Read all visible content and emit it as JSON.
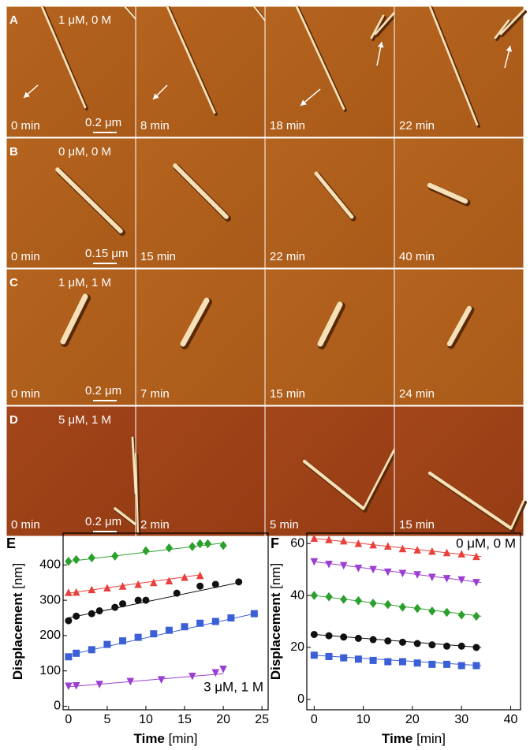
{
  "panels": [
    {
      "letter": "A",
      "condition": "1 μM, 0 M",
      "scale_bar": "0.2 μm",
      "times": [
        "0 min",
        "8 min",
        "18 min",
        "22 min"
      ]
    },
    {
      "letter": "B",
      "condition": "0 μM, 0 M",
      "scale_bar": "0.15 μm",
      "times": [
        "0 min",
        "15 min",
        "22 min",
        "40 min"
      ]
    },
    {
      "letter": "C",
      "condition": "1 μM, 1 M",
      "scale_bar": "0.2 μm",
      "times": [
        "0 min",
        "7 min",
        "15 min",
        "24 min"
      ]
    },
    {
      "letter": "D",
      "condition": "5 μM, 1 M",
      "scale_bar": "0.2 μm",
      "times": [
        "0 min",
        "2 min",
        "5 min",
        "15 min"
      ]
    }
  ],
  "chart_data": [
    {
      "type": "scatter",
      "letter": "E",
      "x_label": "Time",
      "x_unit": "[min]",
      "y_label": "Displacement",
      "y_unit": "[nm]",
      "annotation": "3 μM, 1 M",
      "xlim": [
        -0.7,
        25.8
      ],
      "ylim": [
        -10,
        490
      ],
      "xticks": [
        0,
        5,
        10,
        15,
        20,
        25
      ],
      "yticks": [
        0,
        100,
        200,
        300,
        400
      ],
      "series": [
        {
          "color": "#2ca02c",
          "marker": "diamond",
          "x": [
            0,
            1,
            3,
            6,
            10,
            13,
            16,
            17,
            18,
            20
          ],
          "values": [
            410,
            415,
            420,
            425,
            440,
            448,
            452,
            460,
            460,
            455
          ],
          "fit": {
            "x": [
              0,
              20
            ],
            "y": [
              410,
              462
            ]
          }
        },
        {
          "color": "#e8413c",
          "marker": "triangle-up",
          "x": [
            0,
            1,
            3,
            5,
            7,
            9,
            11,
            13,
            15,
            17
          ],
          "values": [
            322,
            323,
            330,
            335,
            340,
            345,
            350,
            355,
            365,
            370
          ],
          "fit": {
            "x": [
              0,
              17
            ],
            "y": [
              320,
              372
            ]
          }
        },
        {
          "color": "#111111",
          "marker": "circle",
          "x": [
            0,
            1,
            3,
            4,
            6,
            7,
            9,
            10,
            14,
            17,
            19,
            22
          ],
          "values": [
            242,
            255,
            262,
            270,
            280,
            290,
            300,
            300,
            320,
            340,
            345,
            352
          ],
          "fit": {
            "x": [
              0,
              22
            ],
            "y": [
              250,
              350
            ]
          }
        },
        {
          "color": "#3b5fd6",
          "marker": "square",
          "x": [
            0,
            1,
            3,
            5,
            7,
            9,
            11,
            13,
            15,
            17,
            19,
            21,
            24
          ],
          "values": [
            140,
            150,
            160,
            175,
            185,
            195,
            205,
            215,
            225,
            235,
            240,
            250,
            262
          ],
          "fit": {
            "x": [
              0,
              24
            ],
            "y": [
              145,
              262
            ]
          }
        },
        {
          "color": "#9b3fd1",
          "marker": "triangle-down",
          "x": [
            0,
            1,
            4,
            8,
            12,
            16,
            19,
            20
          ],
          "values": [
            57,
            58,
            62,
            70,
            75,
            85,
            95,
            105
          ],
          "fit": {
            "x": [
              0,
              20
            ],
            "y": [
              55,
              92
            ]
          }
        }
      ]
    },
    {
      "type": "scatter",
      "letter": "F",
      "x_label": "Time",
      "x_unit": "[min]",
      "y_label": "Displacement",
      "y_unit": "[nm]",
      "annotation": "0 μM, 0 M",
      "xlim": [
        -1.5,
        42
      ],
      "ylim": [
        -4,
        64
      ],
      "xticks": [
        0,
        10,
        20,
        30,
        40
      ],
      "yticks": [
        0,
        20,
        40,
        60
      ],
      "series": [
        {
          "color": "#e8413c",
          "marker": "triangle-up",
          "x": [
            0,
            3,
            6,
            9,
            12,
            15,
            18,
            21,
            24,
            27,
            30,
            33
          ],
          "values": [
            62,
            61.5,
            61,
            60,
            59.5,
            59,
            58,
            57.5,
            57,
            56.5,
            56,
            55
          ],
          "fit": {
            "x": [
              0,
              34
            ],
            "y": [
              62,
              55
            ]
          }
        },
        {
          "color": "#9b3fd1",
          "marker": "triangle-down",
          "x": [
            0,
            3,
            6,
            9,
            12,
            15,
            18,
            21,
            24,
            27,
            30,
            33
          ],
          "values": [
            53,
            52,
            51.5,
            50.5,
            50,
            49,
            48.5,
            48,
            47,
            46.5,
            46,
            45
          ],
          "fit": {
            "x": [
              0,
              34
            ],
            "y": [
              53,
              45
            ]
          }
        },
        {
          "color": "#2ca02c",
          "marker": "diamond",
          "x": [
            0,
            3,
            6,
            9,
            12,
            15,
            18,
            21,
            24,
            27,
            30,
            33
          ],
          "values": [
            40,
            39.5,
            38.5,
            38,
            37,
            36.5,
            35.5,
            35,
            34,
            33.5,
            32.5,
            32
          ],
          "fit": {
            "x": [
              0,
              34
            ],
            "y": [
              40,
              32
            ]
          }
        },
        {
          "color": "#111111",
          "marker": "circle",
          "x": [
            0,
            3,
            6,
            9,
            12,
            15,
            18,
            21,
            24,
            27,
            30,
            33
          ],
          "values": [
            25,
            24.5,
            24,
            23.5,
            23,
            22.5,
            22,
            21.5,
            21,
            20.5,
            20.5,
            20
          ],
          "fit": {
            "x": [
              0,
              34
            ],
            "y": [
              25,
              20
            ]
          }
        },
        {
          "color": "#3b5fd6",
          "marker": "square",
          "x": [
            0,
            3,
            6,
            9,
            12,
            15,
            18,
            21,
            24,
            27,
            30,
            33
          ],
          "values": [
            17,
            16.5,
            16,
            15.5,
            15,
            14.5,
            14.5,
            14,
            13.5,
            13.5,
            13,
            13
          ],
          "fit": {
            "x": [
              0,
              34
            ],
            "y": [
              17,
              13
            ]
          }
        }
      ]
    }
  ]
}
